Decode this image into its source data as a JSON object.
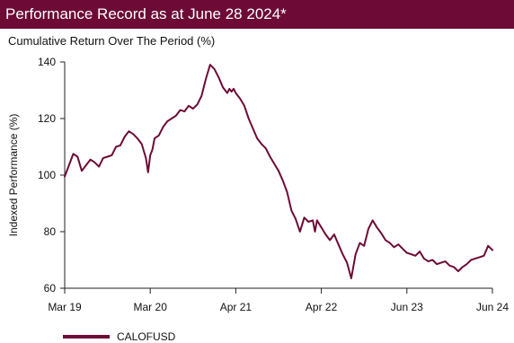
{
  "header": {
    "title": "Performance Record as at June 28 2024*",
    "subtitle": "Cumulative Return Over The Period (%)"
  },
  "colors": {
    "brand": "#6d0b36",
    "axis": "#222222",
    "text": "#111111"
  },
  "chart_data": {
    "type": "line",
    "title": "Cumulative Return Over The Period (%)",
    "xlabel": "",
    "ylabel": "Indexed Performance (%)",
    "x_ticks": [
      "Mar 19",
      "Mar 20",
      "Apr 21",
      "Apr 22",
      "Jun 23",
      "Jun 24"
    ],
    "y_ticks": [
      60,
      80,
      100,
      120,
      140
    ],
    "xlim": [
      0,
      1
    ],
    "ylim": [
      60,
      140
    ],
    "grid": false,
    "legend_position": "bottom-left",
    "series": [
      {
        "name": "CALOFUSD",
        "x": [
          0.0,
          0.01,
          0.02,
          0.03,
          0.04,
          0.05,
          0.06,
          0.07,
          0.08,
          0.09,
          0.1,
          0.11,
          0.12,
          0.13,
          0.14,
          0.15,
          0.16,
          0.17,
          0.18,
          0.19,
          0.195,
          0.2,
          0.205,
          0.21,
          0.22,
          0.23,
          0.24,
          0.25,
          0.26,
          0.27,
          0.28,
          0.29,
          0.3,
          0.31,
          0.32,
          0.33,
          0.34,
          0.35,
          0.36,
          0.37,
          0.38,
          0.385,
          0.39,
          0.395,
          0.4,
          0.41,
          0.42,
          0.43,
          0.44,
          0.45,
          0.46,
          0.47,
          0.48,
          0.49,
          0.5,
          0.51,
          0.52,
          0.53,
          0.54,
          0.55,
          0.56,
          0.57,
          0.58,
          0.585,
          0.59,
          0.6,
          0.61,
          0.62,
          0.63,
          0.64,
          0.65,
          0.66,
          0.67,
          0.68,
          0.69,
          0.7,
          0.71,
          0.72,
          0.73,
          0.74,
          0.75,
          0.76,
          0.77,
          0.78,
          0.79,
          0.8,
          0.81,
          0.82,
          0.83,
          0.84,
          0.85,
          0.86,
          0.87,
          0.88,
          0.89,
          0.9,
          0.91,
          0.92,
          0.93,
          0.94,
          0.95,
          0.96,
          0.97,
          0.98,
          0.99,
          1.0
        ],
        "values": [
          99.5,
          103.5,
          107.5,
          106.5,
          101.5,
          103.5,
          105.5,
          104.5,
          103,
          106,
          106.5,
          107,
          110,
          110.5,
          113.5,
          115.5,
          114.5,
          113,
          111,
          106,
          101,
          107,
          109,
          113,
          114,
          117,
          119,
          120,
          121,
          123,
          122.5,
          124.5,
          123.5,
          125,
          128,
          134,
          139,
          137.5,
          134.5,
          131,
          129,
          130.5,
          129.5,
          130.5,
          129,
          127,
          124.5,
          120,
          116.5,
          113,
          111,
          109.5,
          106.5,
          104,
          101.5,
          98,
          94,
          87.5,
          84.5,
          80,
          85,
          83.5,
          84,
          80,
          84,
          81.5,
          79,
          77,
          79,
          75.5,
          72,
          69,
          63.5,
          72,
          76,
          75,
          81,
          84,
          81.5,
          79.5,
          77,
          76,
          74.5,
          75.5,
          74,
          72.5,
          72,
          71.5,
          73,
          70.5,
          69.5,
          70,
          68.5,
          69,
          69.5,
          68,
          67.5,
          66,
          67.5,
          68.5,
          70,
          70.5,
          71,
          71.5,
          75,
          73.5
        ]
      }
    ]
  }
}
